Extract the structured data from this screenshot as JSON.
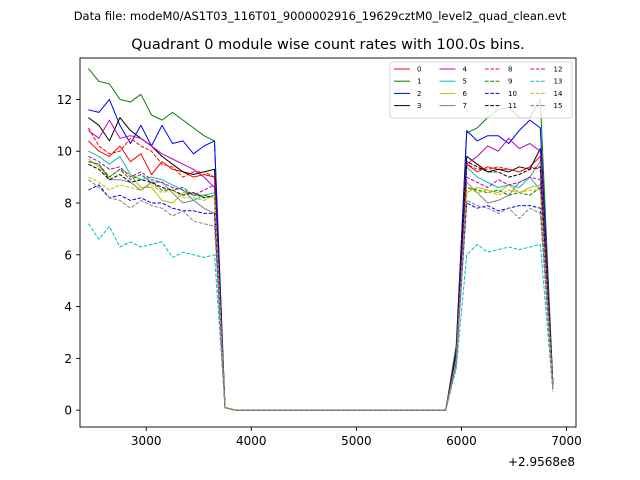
{
  "header": {
    "suptitle": "Data file: modeM0/AS1T03_116T01_9000002916_19629cztM0_level2_quad_clean.evt"
  },
  "chart_data": {
    "type": "line",
    "title": "Quadrant 0 module wise count rates with 100.0s bins.",
    "xlabel": "",
    "ylabel": "",
    "x_offset_label": "+2.9568e8",
    "xlim": [
      2370,
      7090
    ],
    "ylim": [
      -0.65,
      13.6
    ],
    "xticks": [
      3000,
      4000,
      5000,
      6000,
      7000
    ],
    "xtick_labels": [
      "3000",
      "4000",
      "5000",
      "6000",
      "7000"
    ],
    "yticks": [
      0,
      2,
      4,
      6,
      8,
      10,
      12
    ],
    "ytick_labels": [
      "0",
      "2",
      "4",
      "6",
      "8",
      "10",
      "12"
    ],
    "grid": false,
    "legend_position": "top-right",
    "x": [
      2450,
      2550,
      2650,
      2750,
      2850,
      2950,
      3050,
      3150,
      3250,
      3350,
      3450,
      3550,
      3650,
      3750,
      3850,
      3950,
      4050,
      4150,
      4250,
      4350,
      4450,
      4550,
      4650,
      4750,
      4850,
      4950,
      5050,
      5150,
      5250,
      5350,
      5450,
      5550,
      5650,
      5750,
      5850,
      5950,
      6050,
      6150,
      6250,
      6350,
      6450,
      6550,
      6650,
      6750,
      6870
    ],
    "series": [
      {
        "name": "0",
        "color": "#ff0000",
        "dash": "solid",
        "values": [
          10.4,
          10.0,
          9.8,
          10.2,
          9.6,
          9.9,
          9.1,
          9.6,
          9.3,
          9.2,
          9.0,
          9.1,
          9.0,
          0.1,
          0.0,
          0.0,
          0.0,
          0.0,
          0.0,
          0.0,
          0.0,
          0.0,
          0.0,
          0.0,
          0.0,
          0.0,
          0.0,
          0.0,
          0.0,
          0.0,
          0.0,
          0.0,
          0.0,
          0.0,
          0.0,
          2.0,
          9.5,
          9.2,
          9.4,
          9.3,
          9.3,
          9.2,
          9.4,
          9.8,
          1.0
        ]
      },
      {
        "name": "1",
        "color": "#008000",
        "dash": "solid",
        "values": [
          13.2,
          12.7,
          12.6,
          12.0,
          11.9,
          12.2,
          11.4,
          11.2,
          11.5,
          11.2,
          10.9,
          10.6,
          10.4,
          0.1,
          0.0,
          0.0,
          0.0,
          0.0,
          0.0,
          0.0,
          0.0,
          0.0,
          0.0,
          0.0,
          0.0,
          0.0,
          0.0,
          0.0,
          0.0,
          0.0,
          0.0,
          0.0,
          0.0,
          0.0,
          0.0,
          2.5,
          10.7,
          10.9,
          11.3,
          11.6,
          11.7,
          11.3,
          11.3,
          12.0,
          1.0
        ]
      },
      {
        "name": "2",
        "color": "#0000ff",
        "dash": "solid",
        "values": [
          11.6,
          11.5,
          12.0,
          11.0,
          10.3,
          11.0,
          10.2,
          11.0,
          10.3,
          10.4,
          9.9,
          10.2,
          10.4,
          0.1,
          0.0,
          0.0,
          0.0,
          0.0,
          0.0,
          0.0,
          0.0,
          0.0,
          0.0,
          0.0,
          0.0,
          0.0,
          0.0,
          0.0,
          0.0,
          0.0,
          0.0,
          0.0,
          0.0,
          0.0,
          0.0,
          2.3,
          10.8,
          10.4,
          10.6,
          10.6,
          10.3,
          10.8,
          11.2,
          10.9,
          1.0
        ]
      },
      {
        "name": "3",
        "color": "#000000",
        "dash": "solid",
        "values": [
          11.3,
          11.0,
          10.4,
          11.3,
          10.8,
          10.5,
          10.2,
          9.8,
          9.5,
          9.2,
          9.1,
          9.2,
          9.3,
          0.1,
          0.0,
          0.0,
          0.0,
          0.0,
          0.0,
          0.0,
          0.0,
          0.0,
          0.0,
          0.0,
          0.0,
          0.0,
          0.0,
          0.0,
          0.0,
          0.0,
          0.0,
          0.0,
          0.0,
          0.0,
          0.0,
          2.2,
          9.8,
          9.5,
          9.2,
          9.3,
          9.2,
          9.4,
          9.3,
          10.1,
          1.0
        ]
      },
      {
        "name": "4",
        "color": "#bf00bf",
        "dash": "solid",
        "values": [
          10.8,
          10.5,
          11.2,
          10.5,
          10.6,
          10.5,
          10.2,
          9.9,
          9.7,
          9.5,
          9.3,
          9.0,
          8.6,
          0.1,
          0.0,
          0.0,
          0.0,
          0.0,
          0.0,
          0.0,
          0.0,
          0.0,
          0.0,
          0.0,
          0.0,
          0.0,
          0.0,
          0.0,
          0.0,
          0.0,
          0.0,
          0.0,
          0.0,
          0.0,
          0.0,
          2.1,
          9.5,
          9.8,
          10.2,
          10.0,
          10.5,
          10.1,
          10.3,
          10.0,
          0.9
        ]
      },
      {
        "name": "5",
        "color": "#00bfbf",
        "dash": "solid",
        "values": [
          10.0,
          9.8,
          9.5,
          9.8,
          9.1,
          8.9,
          9.0,
          8.9,
          8.7,
          8.5,
          8.1,
          8.3,
          8.4,
          0.1,
          0.0,
          0.0,
          0.0,
          0.0,
          0.0,
          0.0,
          0.0,
          0.0,
          0.0,
          0.0,
          0.0,
          0.0,
          0.0,
          0.0,
          0.0,
          0.0,
          0.0,
          0.0,
          0.0,
          0.0,
          0.0,
          2.0,
          9.4,
          9.0,
          8.8,
          8.6,
          8.7,
          8.6,
          9.0,
          8.5,
          0.9
        ]
      },
      {
        "name": "6",
        "color": "#bfbf00",
        "dash": "solid",
        "values": [
          9.7,
          9.4,
          9.0,
          9.3,
          9.1,
          8.6,
          8.6,
          8.1,
          8.0,
          8.4,
          8.4,
          8.2,
          8.3,
          0.1,
          0.0,
          0.0,
          0.0,
          0.0,
          0.0,
          0.0,
          0.0,
          0.0,
          0.0,
          0.0,
          0.0,
          0.0,
          0.0,
          0.0,
          0.0,
          0.0,
          0.0,
          0.0,
          0.0,
          0.0,
          0.0,
          1.9,
          8.4,
          8.6,
          8.5,
          8.4,
          8.7,
          8.4,
          8.6,
          8.7,
          0.9
        ]
      },
      {
        "name": "7",
        "color": "#808080",
        "dash": "solid",
        "values": [
          9.6,
          9.5,
          8.9,
          8.9,
          8.8,
          8.5,
          8.8,
          8.8,
          8.4,
          8.0,
          8.1,
          7.8,
          7.6,
          0.1,
          0.0,
          0.0,
          0.0,
          0.0,
          0.0,
          0.0,
          0.0,
          0.0,
          0.0,
          0.0,
          0.0,
          0.0,
          0.0,
          0.0,
          0.0,
          0.0,
          0.0,
          0.0,
          0.0,
          0.0,
          0.0,
          1.9,
          8.8,
          8.4,
          8.0,
          8.1,
          8.3,
          8.8,
          9.0,
          9.6,
          0.9
        ]
      },
      {
        "name": "8",
        "color": "#ff0000",
        "dash": "dashed",
        "values": [
          10.9,
          10.2,
          9.9,
          10.0,
          10.5,
          10.2,
          10.0,
          9.5,
          9.4,
          9.0,
          9.2,
          9.2,
          9.0,
          0.1,
          0.0,
          0.0,
          0.0,
          0.0,
          0.0,
          0.0,
          0.0,
          0.0,
          0.0,
          0.0,
          0.0,
          0.0,
          0.0,
          0.0,
          0.0,
          0.0,
          0.0,
          0.0,
          0.0,
          0.0,
          0.0,
          2.0,
          9.5,
          9.3,
          9.3,
          9.4,
          9.3,
          9.2,
          9.4,
          9.3,
          1.0
        ]
      },
      {
        "name": "9",
        "color": "#008000",
        "dash": "dashed",
        "values": [
          9.6,
          9.5,
          9.0,
          9.3,
          8.9,
          9.1,
          8.8,
          8.5,
          8.5,
          8.6,
          8.3,
          8.3,
          8.2,
          0.1,
          0.0,
          0.0,
          0.0,
          0.0,
          0.0,
          0.0,
          0.0,
          0.0,
          0.0,
          0.0,
          0.0,
          0.0,
          0.0,
          0.0,
          0.0,
          0.0,
          0.0,
          0.0,
          0.0,
          0.0,
          0.0,
          1.9,
          8.6,
          8.5,
          8.4,
          8.5,
          8.3,
          8.4,
          8.3,
          8.6,
          0.9
        ]
      },
      {
        "name": "10",
        "color": "#0000ff",
        "dash": "dashed",
        "values": [
          8.5,
          8.7,
          8.2,
          8.3,
          8.1,
          8.2,
          8.0,
          8.0,
          7.8,
          7.7,
          7.7,
          7.6,
          7.6,
          0.1,
          0.0,
          0.0,
          0.0,
          0.0,
          0.0,
          0.0,
          0.0,
          0.0,
          0.0,
          0.0,
          0.0,
          0.0,
          0.0,
          0.0,
          0.0,
          0.0,
          0.0,
          0.0,
          0.0,
          0.0,
          0.0,
          1.8,
          8.0,
          7.8,
          7.9,
          7.7,
          7.8,
          7.9,
          7.9,
          7.8,
          0.9
        ]
      },
      {
        "name": "11",
        "color": "#000000",
        "dash": "dashed",
        "values": [
          9.5,
          9.3,
          8.9,
          9.1,
          8.8,
          8.9,
          8.8,
          8.6,
          8.5,
          8.3,
          8.4,
          8.2,
          8.3,
          0.1,
          0.0,
          0.0,
          0.0,
          0.0,
          0.0,
          0.0,
          0.0,
          0.0,
          0.0,
          0.0,
          0.0,
          0.0,
          0.0,
          0.0,
          0.0,
          0.0,
          0.0,
          0.0,
          0.0,
          0.0,
          0.0,
          2.0,
          9.6,
          9.4,
          9.2,
          9.2,
          9.0,
          9.1,
          9.3,
          9.4,
          1.0
        ]
      },
      {
        "name": "12",
        "color": "#bf00bf",
        "dash": "dashed",
        "values": [
          9.8,
          9.6,
          9.3,
          9.4,
          9.0,
          9.2,
          8.9,
          8.8,
          8.6,
          8.5,
          8.3,
          8.5,
          8.7,
          0.1,
          0.0,
          0.0,
          0.0,
          0.0,
          0.0,
          0.0,
          0.0,
          0.0,
          0.0,
          0.0,
          0.0,
          0.0,
          0.0,
          0.0,
          0.0,
          0.0,
          0.0,
          0.0,
          0.0,
          0.0,
          0.0,
          2.0,
          9.0,
          8.8,
          8.6,
          8.9,
          8.7,
          8.8,
          9.0,
          8.9,
          1.0
        ]
      },
      {
        "name": "13",
        "color": "#00bfbf",
        "dash": "dashed",
        "values": [
          7.2,
          6.6,
          7.1,
          6.3,
          6.5,
          6.3,
          6.4,
          6.5,
          5.9,
          6.1,
          6.0,
          5.9,
          6.0,
          0.1,
          0.0,
          0.0,
          0.0,
          0.0,
          0.0,
          0.0,
          0.0,
          0.0,
          0.0,
          0.0,
          0.0,
          0.0,
          0.0,
          0.0,
          0.0,
          0.0,
          0.0,
          0.0,
          0.0,
          0.0,
          0.0,
          1.6,
          6.0,
          6.4,
          6.1,
          6.2,
          6.3,
          6.2,
          6.3,
          6.4,
          0.7
        ]
      },
      {
        "name": "14",
        "color": "#bfbf00",
        "dash": "dashed",
        "values": [
          9.0,
          8.8,
          8.5,
          8.7,
          8.6,
          8.5,
          8.7,
          8.4,
          8.5,
          8.2,
          8.2,
          8.1,
          8.3,
          0.1,
          0.0,
          0.0,
          0.0,
          0.0,
          0.0,
          0.0,
          0.0,
          0.0,
          0.0,
          0.0,
          0.0,
          0.0,
          0.0,
          0.0,
          0.0,
          0.0,
          0.0,
          0.0,
          0.0,
          0.0,
          0.0,
          1.9,
          8.6,
          8.4,
          8.5,
          8.3,
          8.5,
          8.4,
          8.5,
          8.5,
          0.9
        ]
      },
      {
        "name": "15",
        "color": "#808080",
        "dash": "dashed",
        "values": [
          8.9,
          8.6,
          8.2,
          8.1,
          7.8,
          8.1,
          7.9,
          7.8,
          7.5,
          7.7,
          7.3,
          7.2,
          7.1,
          0.1,
          0.0,
          0.0,
          0.0,
          0.0,
          0.0,
          0.0,
          0.0,
          0.0,
          0.0,
          0.0,
          0.0,
          0.0,
          0.0,
          0.0,
          0.0,
          0.0,
          0.0,
          0.0,
          0.0,
          0.0,
          0.0,
          1.8,
          8.1,
          7.9,
          7.8,
          7.6,
          7.8,
          7.4,
          7.8,
          7.6,
          0.8
        ]
      }
    ]
  }
}
